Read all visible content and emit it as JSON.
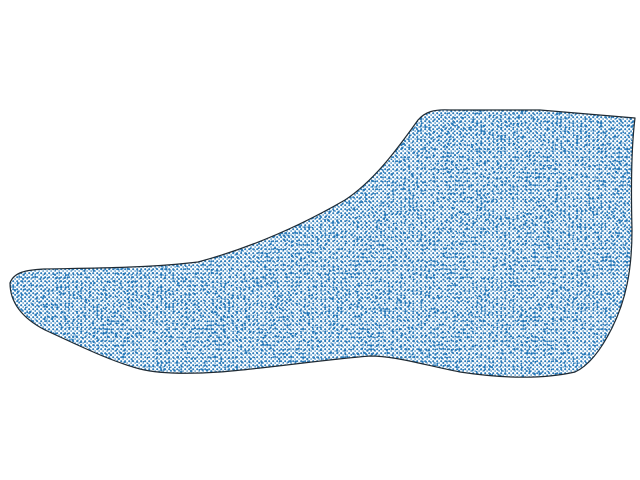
{
  "figure": {
    "subject": "foot-point-cloud",
    "view": "lateral",
    "point_color": "#2b7bba",
    "edge_color": "#1f2a33",
    "background": "#ffffff"
  }
}
